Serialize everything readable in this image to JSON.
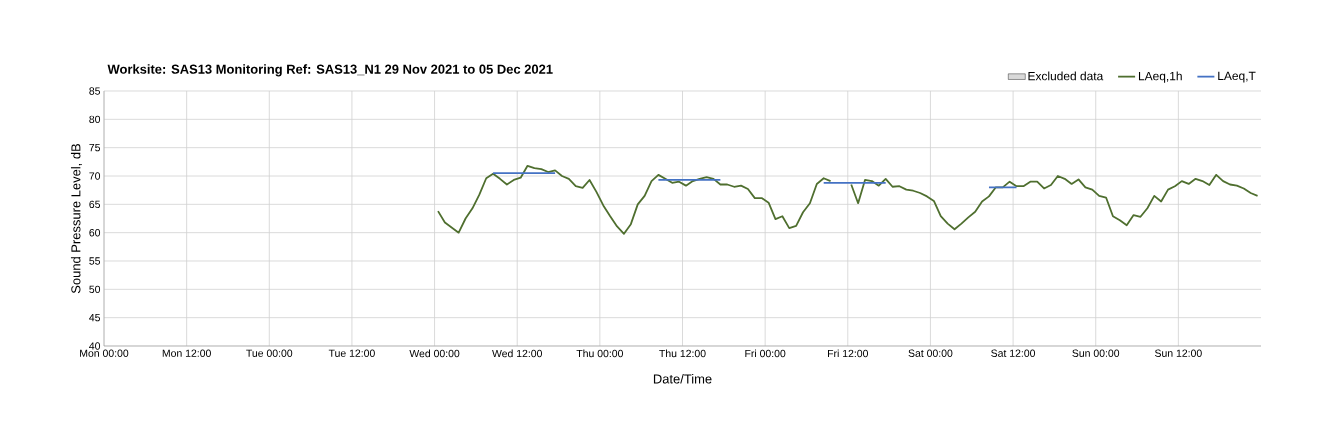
{
  "chart_data": {
    "type": "line",
    "title": "Worksite: SAS13    Monitoring Ref: SAS13_N1     29 Nov 2021 to 05 Dec 2021",
    "xlabel": "Date/Time",
    "ylabel": "Sound Pressure Level, dB",
    "xlim": [
      "2021-11-29T00:00",
      "2021-12-06T00:00"
    ],
    "ylim": [
      40,
      85
    ],
    "xticks": [
      {
        "value": "2021-11-29T00:00",
        "label": "Mon 00:00"
      },
      {
        "value": "2021-11-29T12:00",
        "label": "Mon 12:00"
      },
      {
        "value": "2021-11-30T00:00",
        "label": "Tue 00:00"
      },
      {
        "value": "2021-11-30T12:00",
        "label": "Tue 12:00"
      },
      {
        "value": "2021-12-01T00:00",
        "label": "Wed 00:00"
      },
      {
        "value": "2021-12-01T12:00",
        "label": "Wed 12:00"
      },
      {
        "value": "2021-12-02T00:00",
        "label": "Thu 00:00"
      },
      {
        "value": "2021-12-02T12:00",
        "label": "Thu 12:00"
      },
      {
        "value": "2021-12-03T00:00",
        "label": "Fri 00:00"
      },
      {
        "value": "2021-12-03T12:00",
        "label": "Fri 12:00"
      },
      {
        "value": "2021-12-04T00:00",
        "label": "Sat 00:00"
      },
      {
        "value": "2021-12-04T12:00",
        "label": "Sat 12:00"
      },
      {
        "value": "2021-12-05T00:00",
        "label": "Sun 00:00"
      },
      {
        "value": "2021-12-05T12:00",
        "label": "Sun 12:00"
      }
    ],
    "yticks": [
      40,
      45,
      50,
      55,
      60,
      65,
      70,
      75,
      80,
      85
    ],
    "grid": true,
    "legend": "top right",
    "series": [
      {
        "name": "Excluded data",
        "type": "area",
        "color": "#d9d9d9"
      },
      {
        "name": "LAeq,1h",
        "color": "#4f6f2f",
        "x": [
          "2021-12-01T00:30",
          "2021-12-01T01:30",
          "2021-12-01T03:30",
          "2021-12-01T04:30",
          "2021-12-01T05:30",
          "2021-12-01T06:30",
          "2021-12-01T07:30",
          "2021-12-01T08:30",
          "2021-12-01T09:30",
          "2021-12-01T10:30",
          "2021-12-01T11:30",
          "2021-12-01T12:30",
          "2021-12-01T13:30",
          "2021-12-01T14:30",
          "2021-12-01T15:30",
          "2021-12-01T16:30",
          "2021-12-01T17:30",
          "2021-12-01T18:30",
          "2021-12-01T19:30",
          "2021-12-01T20:30",
          "2021-12-01T21:30",
          "2021-12-01T22:30",
          "2021-12-01T23:30",
          "2021-12-02T00:30",
          "2021-12-02T01:30",
          "2021-12-02T02:30",
          "2021-12-02T03:30",
          "2021-12-02T04:30",
          "2021-12-02T05:30",
          "2021-12-02T06:30",
          "2021-12-02T07:30",
          "2021-12-02T08:30",
          "2021-12-02T09:30",
          "2021-12-02T10:30",
          "2021-12-02T11:30",
          "2021-12-02T12:30",
          "2021-12-02T13:30",
          "2021-12-02T14:30",
          "2021-12-02T15:30",
          "2021-12-02T16:30",
          "2021-12-02T17:30",
          "2021-12-02T18:30",
          "2021-12-02T19:30",
          "2021-12-02T20:30",
          "2021-12-02T21:30",
          "2021-12-02T22:30",
          "2021-12-02T23:30",
          "2021-12-03T00:30",
          "2021-12-03T01:30",
          "2021-12-03T02:30",
          "2021-12-03T03:30",
          "2021-12-03T04:30",
          "2021-12-03T05:30",
          "2021-12-03T06:30",
          "2021-12-03T07:30",
          "2021-12-03T08:30",
          "2021-12-03T09:30",
          "2021-12-03T10:30",
          "2021-12-03T11:30",
          "2021-12-03T12:30",
          "2021-12-03T13:30",
          "2021-12-03T14:30",
          "2021-12-03T15:30",
          "2021-12-03T16:30",
          "2021-12-03T17:30",
          "2021-12-03T18:30",
          "2021-12-03T19:30",
          "2021-12-03T20:30",
          "2021-12-03T21:30",
          "2021-12-03T22:30",
          "2021-12-03T23:30",
          "2021-12-04T00:30",
          "2021-12-04T01:30",
          "2021-12-04T02:30",
          "2021-12-04T03:30",
          "2021-12-04T04:30",
          "2021-12-04T05:30",
          "2021-12-04T06:30",
          "2021-12-04T07:30",
          "2021-12-04T08:30",
          "2021-12-04T09:30",
          "2021-12-04T10:30",
          "2021-12-04T11:30",
          "2021-12-04T12:30",
          "2021-12-04T13:30",
          "2021-12-04T14:30",
          "2021-12-04T15:30",
          "2021-12-04T16:30",
          "2021-12-04T17:30",
          "2021-12-04T18:30",
          "2021-12-04T19:30",
          "2021-12-04T20:30",
          "2021-12-04T21:30",
          "2021-12-04T22:30",
          "2021-12-04T23:30",
          "2021-12-05T00:30",
          "2021-12-05T01:30",
          "2021-12-05T02:30",
          "2021-12-05T03:30",
          "2021-12-05T04:30",
          "2021-12-05T05:30",
          "2021-12-05T06:30",
          "2021-12-05T07:30",
          "2021-12-05T08:30",
          "2021-12-05T09:30",
          "2021-12-05T10:30",
          "2021-12-05T11:30",
          "2021-12-05T12:30",
          "2021-12-05T13:30",
          "2021-12-05T14:30",
          "2021-12-05T15:30",
          "2021-12-05T16:30",
          "2021-12-05T17:30",
          "2021-12-05T18:30",
          "2021-12-05T19:30",
          "2021-12-05T20:30",
          "2021-12-05T21:30",
          "2021-12-05T22:30",
          "2021-12-05T23:30"
        ],
        "values": [
          63.8,
          61.8,
          60.0,
          62.5,
          64.3,
          66.7,
          69.6,
          70.4,
          69.5,
          68.5,
          69.3,
          69.7,
          71.8,
          71.4,
          71.2,
          70.7,
          71.0,
          70.0,
          69.5,
          68.2,
          67.9,
          69.3,
          67.2,
          64.8,
          62.9,
          61.1,
          59.8,
          61.5,
          65.0,
          66.5,
          69.1,
          70.2,
          69.5,
          68.8,
          69.0,
          68.3,
          69.1,
          69.5,
          69.8,
          69.5,
          68.5,
          68.5,
          68.1,
          68.3,
          67.7,
          66.1,
          66.1,
          65.3,
          62.4,
          62.9,
          60.8,
          61.2,
          63.6,
          65.2,
          68.6,
          69.6,
          69.1,
          null,
          null,
          68.5,
          65.2,
          69.3,
          69.1,
          68.3,
          69.5,
          68.1,
          68.2,
          67.6,
          67.4,
          67.0,
          66.4,
          65.6,
          62.9,
          61.6,
          60.6,
          61.6,
          62.7,
          63.7,
          65.5,
          66.4,
          68.0,
          68.0,
          69.0,
          68.2,
          68.2,
          69.0,
          69.0,
          67.8,
          68.4,
          70.0,
          69.5,
          68.6,
          69.4,
          68.0,
          67.6,
          66.5,
          66.2,
          62.9,
          62.2,
          61.3,
          63.1,
          62.8,
          64.3,
          66.5,
          65.5,
          67.6,
          68.2,
          69.1,
          68.6,
          69.5,
          69.1,
          68.4,
          70.2,
          69.1,
          68.5,
          68.3,
          67.8,
          67.0,
          66.5
        ]
      },
      {
        "name": "LAeq,T",
        "color": "#4472c4",
        "x": [
          "2021-12-01T08:30",
          "2021-12-01T17:30",
          "2021-12-02T00:00",
          "2021-12-02T08:30",
          "2021-12-02T17:30",
          "2021-12-03T01:00",
          "2021-12-03T08:30",
          "2021-12-03T17:30",
          "2021-12-04T01:00",
          "2021-12-04T08:30",
          "2021-12-04T12:30"
        ],
        "values": [
          70.5,
          70.5,
          null,
          69.3,
          69.3,
          null,
          68.8,
          68.8,
          null,
          68.0,
          68.0
        ]
      }
    ]
  }
}
